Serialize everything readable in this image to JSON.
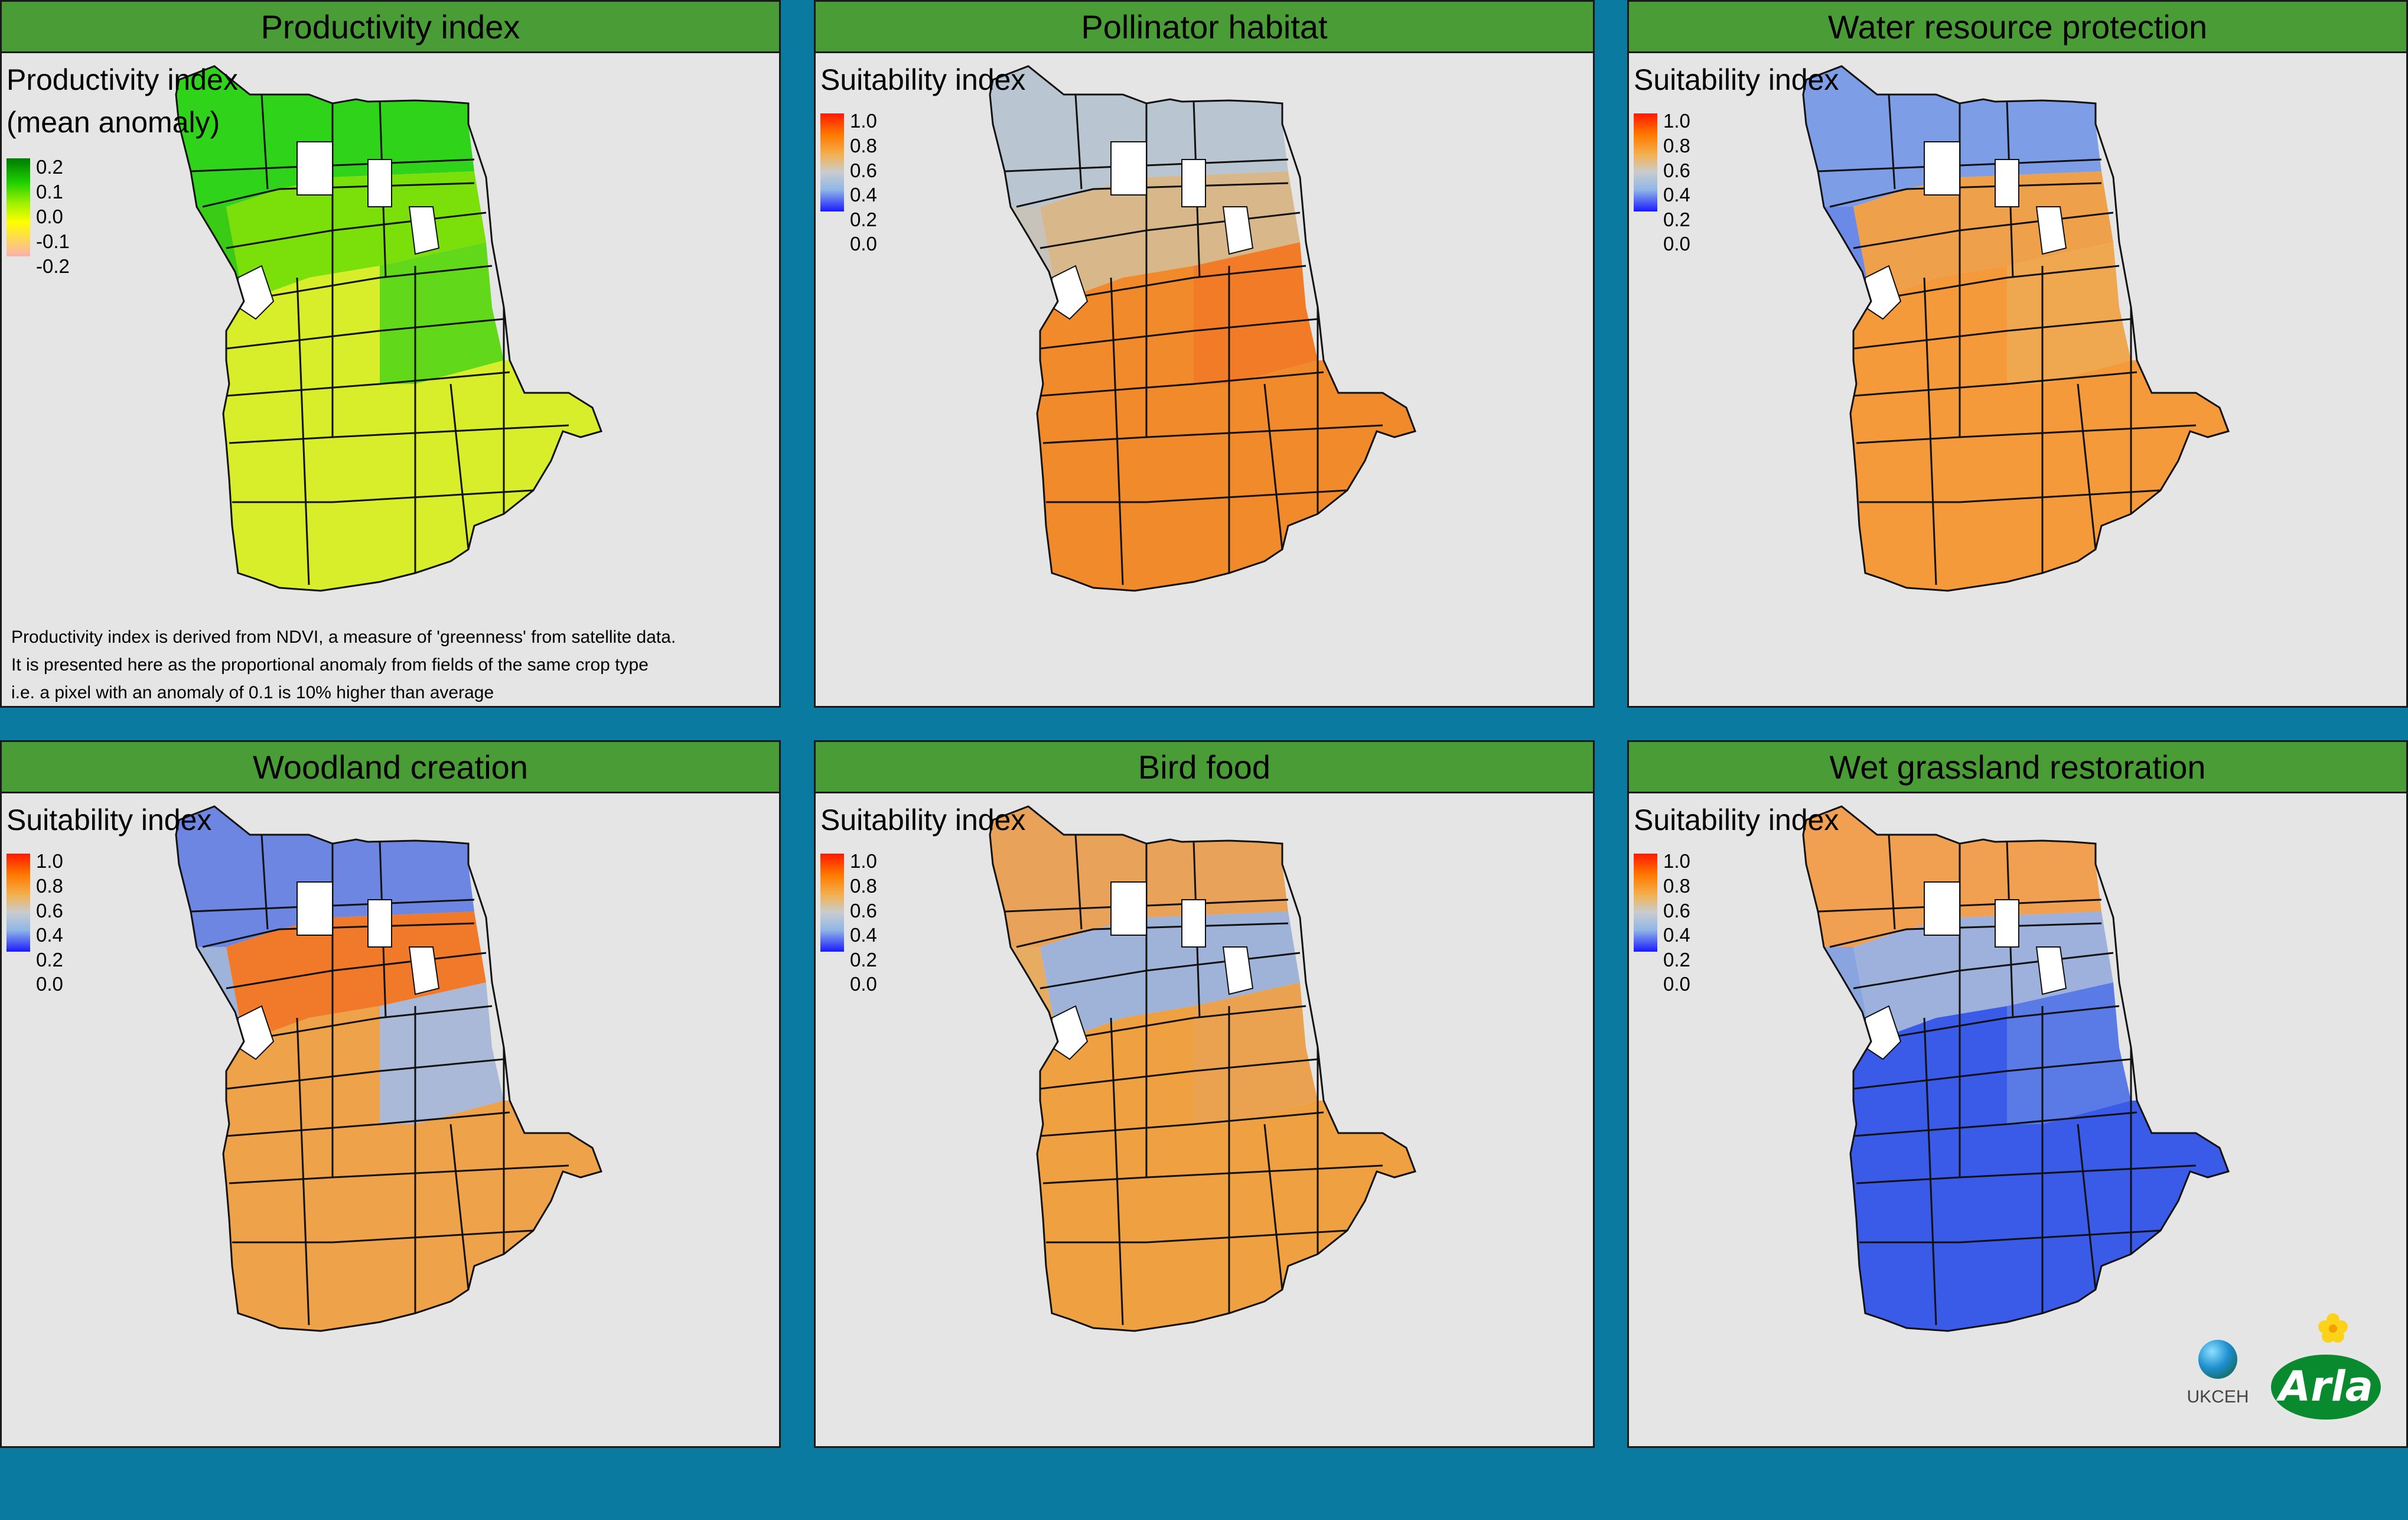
{
  "panels": [
    {
      "id": "productivity",
      "title": "Productivity index",
      "legend_title": "Productivity index",
      "legend_title_2": "(mean anomaly)",
      "legend_ticks": [
        "0.2",
        "0.1",
        "0.0",
        "-0.1",
        "-0.2"
      ],
      "ramp": "ndvi",
      "footnote": [
        "Productivity index is derived from NDVI, a measure of 'greenness' from satellite data.",
        "It is presented here as the proportional anomaly from fields of the same crop type",
        "i.e. a pixel with an anomaly of 0.1 is 10% higher than average"
      ],
      "colors": {
        "n": "#2fd41a",
        "c": "#7be00a",
        "s": "#d8ee2a",
        "e": "#62d81a",
        "w": "#3acc15"
      }
    },
    {
      "id": "pollinator",
      "title": "Pollinator habitat",
      "legend_title": "Suitability index",
      "legend_ticks": [
        "1.0",
        "0.8",
        "0.6",
        "0.4",
        "0.2",
        "0.0"
      ],
      "ramp": "suit",
      "colors": {
        "n": "#b9c6d2",
        "c": "#d8b88a",
        "s": "#f08a2a",
        "e": "#f27b28",
        "w": "#c7c2ba"
      }
    },
    {
      "id": "water",
      "title": "Water resource protection",
      "legend_title": "Suitability index",
      "legend_ticks": [
        "1.0",
        "0.8",
        "0.6",
        "0.4",
        "0.2",
        "0.0"
      ],
      "ramp": "suit",
      "colors": {
        "n": "#7d9de6",
        "c": "#eea04a",
        "s": "#f49a3a",
        "e": "#f0a850",
        "w": "#6b8ae8"
      }
    },
    {
      "id": "woodland",
      "title": "Woodland creation",
      "legend_title": "Suitability index",
      "legend_ticks": [
        "1.0",
        "0.8",
        "0.6",
        "0.4",
        "0.2",
        "0.0"
      ],
      "ramp": "suit",
      "colors": {
        "n": "#6d86e2",
        "c": "#f07a2a",
        "s": "#eea24a",
        "e": "#aab9d8",
        "w": "#9eb3da"
      }
    },
    {
      "id": "birdfood",
      "title": "Bird food",
      "legend_title": "Suitability index",
      "legend_ticks": [
        "1.0",
        "0.8",
        "0.6",
        "0.4",
        "0.2",
        "0.0"
      ],
      "ramp": "suit",
      "colors": {
        "n": "#e9a25a",
        "c": "#9fb2d8",
        "s": "#efa040",
        "e": "#eaa250",
        "w": "#e6ac62"
      }
    },
    {
      "id": "wetgrass",
      "title": "Wet grassland restoration",
      "legend_title": "Suitability index",
      "legend_ticks": [
        "1.0",
        "0.8",
        "0.6",
        "0.4",
        "0.2",
        "0.0"
      ],
      "ramp": "suit",
      "colors": {
        "n": "#f0a050",
        "c": "#9db1dc",
        "s": "#3a5ae8",
        "e": "#5a7ae6",
        "w": "#8aa4e0"
      }
    }
  ],
  "logos": {
    "ukceh": "UKCEH",
    "arla": "Arla"
  }
}
